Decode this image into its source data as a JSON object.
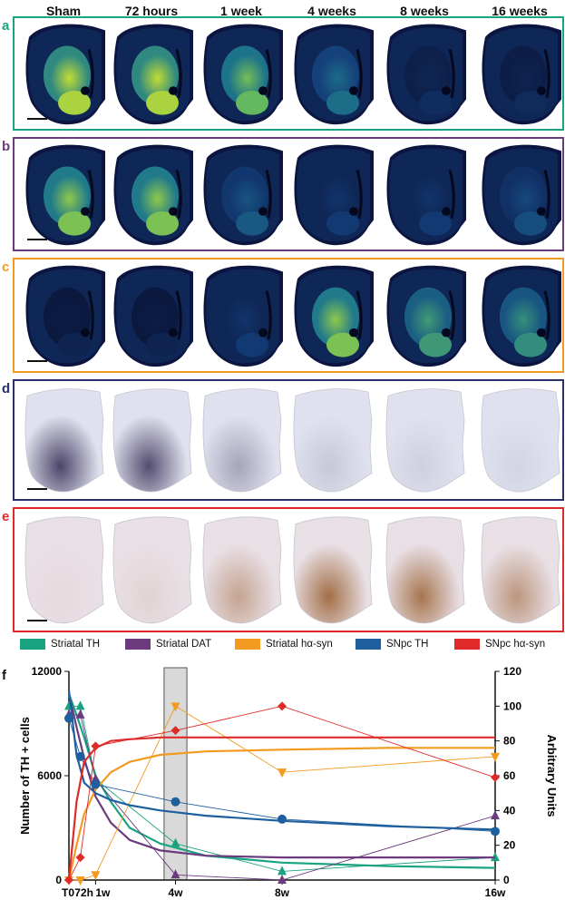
{
  "columns": [
    "Sham",
    "72 hours",
    "1 week",
    "4 weeks",
    "8 weeks",
    "16 weeks"
  ],
  "panels": [
    {
      "letter": "a",
      "color": "#1aa381",
      "kind": "fluor-striatum",
      "intensity": [
        0.95,
        0.95,
        0.8,
        0.45,
        0.12,
        0.1
      ]
    },
    {
      "letter": "b",
      "color": "#6b3b7e",
      "kind": "fluor-dat",
      "intensity": [
        0.85,
        0.85,
        0.35,
        0.2,
        0.2,
        0.3
      ]
    },
    {
      "letter": "c",
      "color": "#f39a20",
      "kind": "fluor-syn",
      "intensity": [
        0.05,
        0.05,
        0.2,
        0.85,
        0.65,
        0.6
      ]
    },
    {
      "letter": "d",
      "color": "#2b2f6e",
      "kind": "ihc-blue",
      "intensity": [
        0.9,
        0.85,
        0.35,
        0.15,
        0.1,
        0.08
      ]
    },
    {
      "letter": "e",
      "color": "#e02a2a",
      "kind": "ihc-brown",
      "intensity": [
        0.05,
        0.1,
        0.45,
        0.85,
        0.8,
        0.55
      ]
    }
  ],
  "legend": [
    {
      "label": "Striatal TH",
      "color": "#1aa381"
    },
    {
      "label": "Striatal DAT",
      "color": "#6b3b7e"
    },
    {
      "label": "Striatal hα-syn",
      "color": "#f39a20"
    },
    {
      "label": "SNpc TH",
      "color": "#1e5fa0"
    },
    {
      "label": "SNpc hα-syn",
      "color": "#e02a2a"
    }
  ],
  "chart_letter": "f",
  "chart_data": {
    "type": "line",
    "x_ticks": [
      {
        "x": 0,
        "label": "T0"
      },
      {
        "x": 3,
        "label": "72h"
      },
      {
        "x": 7,
        "label": "1w"
      },
      {
        "x": 28,
        "label": "4w"
      },
      {
        "x": 56,
        "label": "8w"
      },
      {
        "x": 112,
        "label": "16w"
      }
    ],
    "xlim": [
      0,
      112
    ],
    "ylabel_left": "Number of TH + cells",
    "ylim_left": [
      0,
      12000
    ],
    "yticks_left": [
      0,
      6000,
      12000
    ],
    "ylabel_right": "Arbitrary Units",
    "ylim_right": [
      0,
      120
    ],
    "yticks_right": [
      0,
      20,
      40,
      60,
      80,
      100,
      120
    ],
    "highlight_range": [
      25,
      31
    ],
    "series": [
      {
        "name": "Striatal TH",
        "axis": "right",
        "marker": "triangle-up",
        "color": "#1aa381",
        "x": [
          0,
          3,
          7,
          28,
          56,
          112
        ],
        "y": [
          100,
          100,
          58,
          21,
          5,
          13
        ],
        "fit": [
          107,
          95,
          82,
          60,
          45,
          30,
          21,
          14,
          10,
          8,
          7
        ]
      },
      {
        "name": "Striatal DAT",
        "axis": "right",
        "marker": "triangle-up",
        "color": "#6b3b7e",
        "x": [
          0,
          3,
          7,
          28,
          56,
          112
        ],
        "y": [
          95,
          95,
          58,
          3,
          0,
          37
        ],
        "fit": [
          107,
          88,
          70,
          48,
          33,
          23,
          17,
          14,
          13,
          13,
          13
        ]
      },
      {
        "name": "Striatal hα-syn",
        "axis": "right",
        "marker": "triangle-down",
        "color": "#f39a20",
        "x": [
          0,
          3,
          7,
          28,
          56,
          112
        ],
        "y": [
          0,
          0,
          3,
          100,
          62,
          71
        ],
        "fit": [
          0,
          20,
          38,
          52,
          62,
          68,
          72,
          74,
          75,
          76,
          76
        ]
      },
      {
        "name": "SNpc TH",
        "axis": "left",
        "marker": "circle",
        "color": "#1e5fa0",
        "x": [
          0,
          3,
          7,
          28,
          56,
          112
        ],
        "y": [
          9300,
          7100,
          5500,
          4500,
          3500,
          2800
        ],
        "fit": [
          10900,
          7200,
          5600,
          5000,
          4600,
          4300,
          4000,
          3700,
          3400,
          3100,
          2900
        ]
      },
      {
        "name": "SNpc hα-syn",
        "axis": "right",
        "marker": "diamond",
        "color": "#e02a2a",
        "x": [
          0,
          3,
          7,
          28,
          56,
          112
        ],
        "y": [
          0,
          13,
          77,
          86,
          100,
          59
        ],
        "fit": [
          0,
          45,
          68,
          76,
          80,
          81,
          82,
          82,
          82,
          82,
          82
        ]
      }
    ]
  }
}
